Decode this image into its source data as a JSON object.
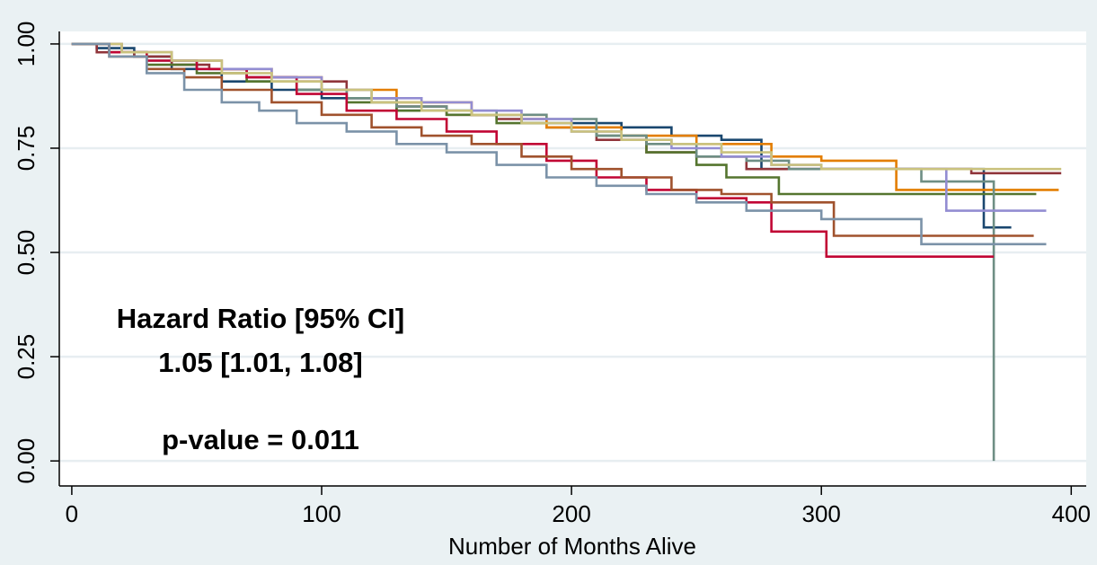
{
  "chart_data": {
    "type": "line",
    "title": "",
    "xlabel": "Number of Months Alive",
    "ylabel": "",
    "xlim": [
      -5,
      406
    ],
    "ylim": [
      -0.06,
      1.03
    ],
    "xticks": [
      0,
      100,
      200,
      300,
      400
    ],
    "yticks": [
      0.0,
      0.25,
      0.5,
      0.75,
      1.0
    ],
    "xtick_labels": [
      "0",
      "100",
      "200",
      "300",
      "400"
    ],
    "ytick_labels": [
      "0.00",
      "0.25",
      "0.50",
      "0.75",
      "1.00"
    ],
    "grid": true,
    "legend": "none",
    "colors": {
      "background": "#eaf1f3",
      "plot_background": "#ffffff",
      "grid": "#e7eef1"
    },
    "annotations": {
      "hr_title": "Hazard Ratio [95% CI]",
      "hr_value": "1.05 [1.01, 1.08]",
      "p_value": "p-value = 0.011"
    },
    "series": [
      {
        "color": "#1a476f",
        "x": [
          0,
          10,
          25,
          40,
          60,
          80,
          100,
          130,
          160,
          180,
          200,
          220,
          240,
          260,
          276,
          320,
          360,
          365,
          376
        ],
        "y": [
          1.0,
          0.99,
          0.97,
          0.94,
          0.91,
          0.89,
          0.87,
          0.84,
          0.83,
          0.81,
          0.81,
          0.8,
          0.78,
          0.77,
          0.7,
          0.7,
          0.7,
          0.56,
          0.56
        ]
      },
      {
        "color": "#90353b",
        "x": [
          0,
          10,
          25,
          40,
          55,
          70,
          90,
          110,
          130,
          150,
          170,
          190,
          210,
          230,
          250,
          270,
          290,
          330,
          360,
          396
        ],
        "y": [
          1.0,
          0.98,
          0.97,
          0.95,
          0.94,
          0.92,
          0.91,
          0.87,
          0.85,
          0.83,
          0.82,
          0.8,
          0.77,
          0.74,
          0.73,
          0.7,
          0.7,
          0.7,
          0.69,
          0.69
        ]
      },
      {
        "color": "#55752f",
        "x": [
          0,
          15,
          30,
          50,
          70,
          90,
          110,
          130,
          150,
          170,
          190,
          210,
          230,
          250,
          262,
          283,
          330,
          386
        ],
        "y": [
          1.0,
          0.98,
          0.95,
          0.93,
          0.91,
          0.89,
          0.86,
          0.84,
          0.83,
          0.81,
          0.8,
          0.78,
          0.74,
          0.71,
          0.68,
          0.64,
          0.64,
          0.64
        ]
      },
      {
        "color": "#e37e00",
        "x": [
          0,
          20,
          40,
          60,
          80,
          100,
          130,
          160,
          190,
          220,
          250,
          280,
          300,
          330,
          395
        ],
        "y": [
          1.0,
          0.98,
          0.96,
          0.94,
          0.92,
          0.89,
          0.86,
          0.83,
          0.8,
          0.78,
          0.76,
          0.73,
          0.72,
          0.65,
          0.65
        ]
      },
      {
        "color": "#6e8e84",
        "x": [
          0,
          15,
          30,
          50,
          70,
          90,
          110,
          130,
          150,
          170,
          190,
          210,
          230,
          250,
          270,
          287,
          310,
          340,
          369
        ],
        "y": [
          1.0,
          0.98,
          0.96,
          0.94,
          0.92,
          0.89,
          0.87,
          0.85,
          0.84,
          0.83,
          0.82,
          0.78,
          0.76,
          0.73,
          0.72,
          0.7,
          0.7,
          0.67,
          0.0
        ]
      },
      {
        "color": "#c10534",
        "x": [
          0,
          15,
          30,
          50,
          70,
          90,
          110,
          130,
          150,
          170,
          190,
          210,
          230,
          250,
          270,
          280,
          302,
          369
        ],
        "y": [
          1.0,
          0.98,
          0.96,
          0.94,
          0.92,
          0.88,
          0.84,
          0.82,
          0.79,
          0.76,
          0.72,
          0.68,
          0.65,
          0.63,
          0.62,
          0.55,
          0.49,
          0.49
        ]
      },
      {
        "color": "#938dd2",
        "x": [
          0,
          20,
          40,
          60,
          80,
          100,
          120,
          140,
          160,
          180,
          200,
          220,
          240,
          260,
          280,
          300,
          350,
          390
        ],
        "y": [
          1.0,
          0.98,
          0.96,
          0.94,
          0.92,
          0.89,
          0.87,
          0.86,
          0.84,
          0.82,
          0.79,
          0.77,
          0.75,
          0.73,
          0.71,
          0.7,
          0.6,
          0.6
        ]
      },
      {
        "color": "#cac27e",
        "x": [
          0,
          20,
          40,
          60,
          80,
          100,
          120,
          140,
          160,
          180,
          200,
          220,
          240,
          260,
          280,
          300,
          340,
          396
        ],
        "y": [
          1.0,
          0.98,
          0.96,
          0.93,
          0.91,
          0.89,
          0.86,
          0.84,
          0.83,
          0.81,
          0.79,
          0.77,
          0.76,
          0.74,
          0.71,
          0.7,
          0.7,
          0.7
        ]
      },
      {
        "color": "#a0522d",
        "x": [
          0,
          15,
          30,
          45,
          60,
          80,
          100,
          120,
          140,
          160,
          180,
          200,
          220,
          240,
          260,
          280,
          305,
          330,
          385
        ],
        "y": [
          1.0,
          0.97,
          0.94,
          0.92,
          0.89,
          0.86,
          0.83,
          0.8,
          0.78,
          0.76,
          0.73,
          0.7,
          0.68,
          0.65,
          0.64,
          0.62,
          0.54,
          0.54,
          0.54
        ]
      },
      {
        "color": "#7b92a8",
        "x": [
          0,
          15,
          30,
          45,
          60,
          75,
          90,
          110,
          130,
          150,
          170,
          190,
          210,
          230,
          250,
          270,
          300,
          340,
          390
        ],
        "y": [
          1.0,
          0.97,
          0.93,
          0.89,
          0.86,
          0.84,
          0.81,
          0.79,
          0.76,
          0.74,
          0.71,
          0.68,
          0.66,
          0.64,
          0.62,
          0.6,
          0.58,
          0.52,
          0.52
        ]
      }
    ]
  }
}
